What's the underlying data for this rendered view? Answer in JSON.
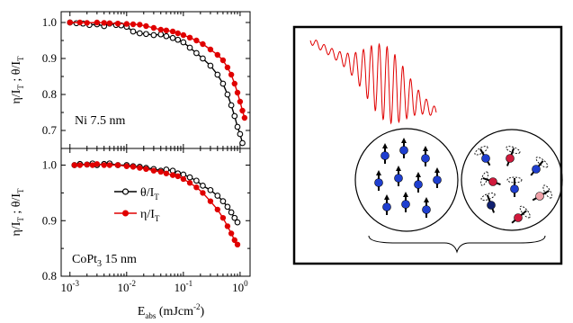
{
  "chart_data": [
    {
      "type": "scatter",
      "panel": "top",
      "annotation": "Ni 7.5 nm",
      "xscale": "log",
      "xlim": [
        0.0007,
        1.5
      ],
      "ylim": [
        0.65,
        1.03
      ],
      "yticks": [
        "1.0",
        "0.9",
        "0.8",
        "0.7"
      ],
      "ytick_values": [
        1.0,
        0.9,
        0.8,
        0.7
      ],
      "ylabel": "η/I_T ; θ/I_T",
      "series": [
        {
          "name": "θ/I_T",
          "marker": "open-circle",
          "color": "#000000",
          "x": [
            0.001,
            0.0013,
            0.0017,
            0.0022,
            0.003,
            0.004,
            0.005,
            0.0065,
            0.008,
            0.01,
            0.013,
            0.017,
            0.022,
            0.03,
            0.04,
            0.05,
            0.065,
            0.08,
            0.1,
            0.13,
            0.17,
            0.22,
            0.3,
            0.4,
            0.5,
            0.6,
            0.7,
            0.8,
            0.9,
            1.0,
            1.1
          ],
          "y": [
            1.0,
            0.998,
            0.997,
            0.993,
            0.995,
            0.99,
            0.997,
            0.993,
            0.992,
            0.988,
            0.975,
            0.97,
            0.968,
            0.965,
            0.967,
            0.962,
            0.957,
            0.952,
            0.945,
            0.93,
            0.915,
            0.9,
            0.88,
            0.855,
            0.83,
            0.8,
            0.77,
            0.74,
            0.71,
            0.69,
            0.665
          ]
        },
        {
          "name": "η/I_T",
          "marker": "filled-circle",
          "color": "#e00000",
          "x": [
            0.001,
            0.0015,
            0.002,
            0.003,
            0.004,
            0.005,
            0.007,
            0.01,
            0.013,
            0.017,
            0.022,
            0.03,
            0.04,
            0.05,
            0.065,
            0.08,
            0.1,
            0.13,
            0.17,
            0.22,
            0.3,
            0.4,
            0.5,
            0.6,
            0.7,
            0.8,
            0.9,
            1.0,
            1.1,
            1.2
          ],
          "y": [
            1.0,
            1.0,
            0.999,
            1.0,
            0.999,
            0.998,
            0.997,
            0.996,
            0.995,
            0.994,
            0.99,
            0.985,
            0.98,
            0.978,
            0.975,
            0.97,
            0.965,
            0.958,
            0.95,
            0.94,
            0.925,
            0.91,
            0.895,
            0.875,
            0.855,
            0.83,
            0.805,
            0.78,
            0.755,
            0.735
          ]
        }
      ]
    },
    {
      "type": "scatter",
      "panel": "bottom",
      "annotation": "CoPt",
      "annotation_sub": "3",
      "annotation_tail": " 15 nm",
      "xscale": "log",
      "xlim": [
        0.0007,
        1.5
      ],
      "xticks": [
        0.001,
        0.01,
        0.1,
        1
      ],
      "xtick_base": "10",
      "xtick_exps": [
        "-3",
        "-2",
        "-1",
        "0"
      ],
      "xlabel": "E",
      "xlabel_sub": "abs",
      "xlabel_tail": " (mJcm",
      "xlabel_sup": "-2",
      "xlabel_end": ")",
      "ylim": [
        0.8,
        1.03
      ],
      "yticks": [
        "1.0",
        "0.9",
        "0.8"
      ],
      "ytick_values": [
        1.0,
        0.9,
        0.8
      ],
      "ylabel": "η/I_T ; θ/I_T",
      "legend_position": "center-left",
      "series": [
        {
          "name": "θ/I_T",
          "marker": "open-circle",
          "color": "#000000",
          "x": [
            0.0012,
            0.0015,
            0.002,
            0.0025,
            0.003,
            0.004,
            0.005,
            0.007,
            0.01,
            0.013,
            0.017,
            0.022,
            0.03,
            0.04,
            0.05,
            0.065,
            0.08,
            0.1,
            0.13,
            0.17,
            0.22,
            0.3,
            0.4,
            0.5,
            0.6,
            0.7,
            0.8,
            0.9
          ],
          "y": [
            1.0,
            1.002,
            1.001,
            1.003,
            1.0,
            1.002,
            1.003,
            1.0,
            1.0,
            0.998,
            0.997,
            0.995,
            0.993,
            0.99,
            0.992,
            0.99,
            0.985,
            0.983,
            0.978,
            0.972,
            0.963,
            0.955,
            0.945,
            0.935,
            0.925,
            0.915,
            0.905,
            0.897
          ]
        },
        {
          "name": "η/I_T",
          "marker": "filled-circle",
          "color": "#e00000",
          "x": [
            0.0012,
            0.0015,
            0.002,
            0.0025,
            0.003,
            0.004,
            0.005,
            0.007,
            0.01,
            0.013,
            0.017,
            0.022,
            0.03,
            0.04,
            0.05,
            0.065,
            0.08,
            0.1,
            0.13,
            0.17,
            0.22,
            0.3,
            0.4,
            0.5,
            0.6,
            0.7,
            0.8,
            0.9
          ],
          "y": [
            1.0,
            1.0,
            1.001,
            1.0,
            1.002,
            1.0,
            1.0,
            1.0,
            0.998,
            0.997,
            0.995,
            0.993,
            0.99,
            0.988,
            0.985,
            0.982,
            0.98,
            0.975,
            0.968,
            0.96,
            0.95,
            0.935,
            0.92,
            0.905,
            0.89,
            0.877,
            0.865,
            0.857
          ]
        }
      ]
    }
  ],
  "legend": [
    {
      "label": "θ/I",
      "sub": "T",
      "color": "#000000",
      "marker": "open-circle"
    },
    {
      "label": "η/I",
      "sub": "T",
      "color": "#e00000",
      "marker": "filled-circle"
    }
  ],
  "ylabel_parts": {
    "a": "η/I",
    "b": "T",
    "c": " ; θ/I",
    "d": "T"
  },
  "schematic": {
    "pulse_color": "#e00000",
    "spin_arrow_color": "#000000",
    "atom_colors": [
      "#1f3fcf",
      "#d01a3c",
      "#f0a0a8",
      "#102070"
    ]
  }
}
